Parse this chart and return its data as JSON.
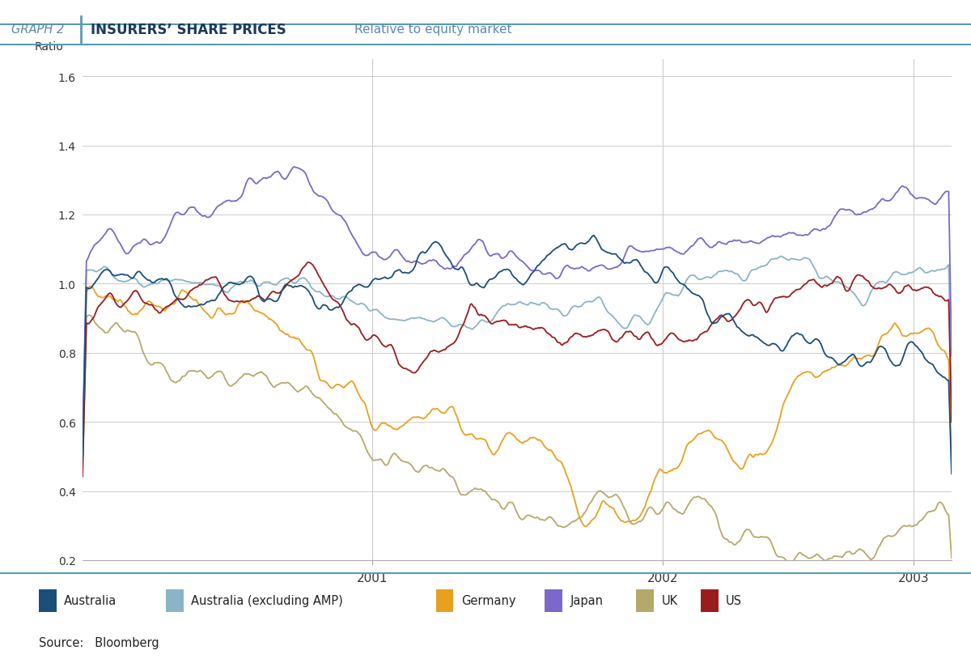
{
  "title_graph": "GRAPH 2",
  "title_main": "INSURERS’ SHARE PRICES",
  "title_sub": "Relative to equity market",
  "ylabel": "Ratio",
  "ylim": [
    0.2,
    1.65
  ],
  "yticks": [
    0.2,
    0.4,
    0.6,
    0.8,
    1.0,
    1.2,
    1.4,
    1.6
  ],
  "colors": {
    "Australia": "#1a4f7a",
    "Australia_exAMP": "#8ab4c8",
    "Germany": "#e8a020",
    "Japan": "#7b68c8",
    "UK": "#b5a96a",
    "US": "#9b1c1c"
  },
  "bg_color": "#ffffff",
  "header_line_color": "#5a9ab5",
  "source": "Bloomberg",
  "n_points": 900
}
